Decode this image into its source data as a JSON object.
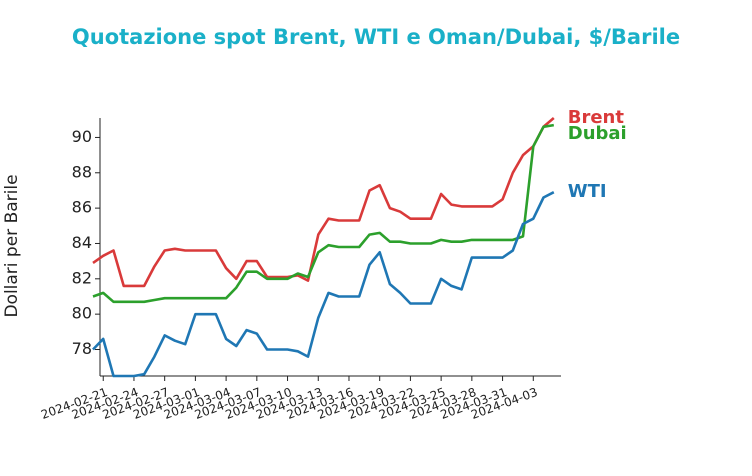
{
  "chart_data": {
    "type": "line",
    "title": "Quotazione spot Brent, WTI e Oman/Dubai, $/Barile",
    "y_label": "Dollari per Barile",
    "x": [
      "2024-02-20",
      "2024-02-21",
      "2024-02-22",
      "2024-02-23",
      "2024-02-24",
      "2024-02-25",
      "2024-02-26",
      "2024-02-27",
      "2024-02-28",
      "2024-02-29",
      "2024-03-01",
      "2024-03-02",
      "2024-03-03",
      "2024-03-04",
      "2024-03-05",
      "2024-03-06",
      "2024-03-07",
      "2024-03-08",
      "2024-03-09",
      "2024-03-10",
      "2024-03-11",
      "2024-03-12",
      "2024-03-13",
      "2024-03-14",
      "2024-03-15",
      "2024-03-16",
      "2024-03-17",
      "2024-03-18",
      "2024-03-19",
      "2024-03-20",
      "2024-03-21",
      "2024-03-22",
      "2024-03-23",
      "2024-03-24",
      "2024-03-25",
      "2024-03-26",
      "2024-03-27",
      "2024-03-28",
      "2024-03-29",
      "2024-03-30",
      "2024-03-31",
      "2024-04-01",
      "2024-04-02",
      "2024-04-03",
      "2024-04-04",
      "2024-04-05"
    ],
    "series": [
      {
        "name": "Brent",
        "color": "#d93a3a",
        "values": [
          82.9,
          83.3,
          83.6,
          81.6,
          81.6,
          81.6,
          82.7,
          83.6,
          83.7,
          83.6,
          83.6,
          83.6,
          83.6,
          82.6,
          82.0,
          83.0,
          83.0,
          82.1,
          82.1,
          82.1,
          82.2,
          81.9,
          84.5,
          85.4,
          85.3,
          85.3,
          85.3,
          87.0,
          87.3,
          86.0,
          85.8,
          85.4,
          85.4,
          85.4,
          86.8,
          86.2,
          86.1,
          86.1,
          86.1,
          86.1,
          86.5,
          88.0,
          89.0,
          89.5,
          90.6,
          91.1
        ]
      },
      {
        "name": "Dubai",
        "color": "#2ca02c",
        "values": [
          81.0,
          81.2,
          80.7,
          80.7,
          80.7,
          80.7,
          80.8,
          80.9,
          80.9,
          80.9,
          80.9,
          80.9,
          80.9,
          80.9,
          81.5,
          82.4,
          82.4,
          82.0,
          82.0,
          82.0,
          82.3,
          82.1,
          83.5,
          83.9,
          83.8,
          83.8,
          83.8,
          84.5,
          84.6,
          84.1,
          84.1,
          84.0,
          84.0,
          84.0,
          84.2,
          84.1,
          84.1,
          84.2,
          84.2,
          84.2,
          84.2,
          84.2,
          84.4,
          89.5,
          90.6,
          90.7
        ]
      },
      {
        "name": "WTI",
        "color": "#1f77b4",
        "values": [
          78.0,
          78.6,
          76.5,
          76.5,
          76.5,
          76.6,
          77.6,
          78.8,
          78.5,
          78.3,
          80.0,
          80.0,
          80.0,
          78.6,
          78.2,
          79.1,
          78.9,
          78.0,
          78.0,
          78.0,
          77.9,
          77.6,
          79.8,
          81.2,
          81.0,
          81.0,
          81.0,
          82.8,
          83.5,
          81.7,
          81.2,
          80.6,
          80.6,
          80.6,
          82.0,
          81.6,
          81.4,
          83.2,
          83.2,
          83.2,
          83.2,
          83.6,
          85.1,
          85.4,
          86.6,
          86.9
        ]
      }
    ],
    "xlim": [
      "2024-02-20",
      "2024-04-06"
    ],
    "xticks": [
      "2024-02-21",
      "2024-02-24",
      "2024-02-27",
      "2024-03-01",
      "2024-03-04",
      "2024-03-07",
      "2024-03-10",
      "2024-03-13",
      "2024-03-16",
      "2024-03-19",
      "2024-03-22",
      "2024-03-25",
      "2024-03-28",
      "2024-03-31",
      "2024-04-03"
    ],
    "ylim": [
      76.5,
      91.1
    ],
    "yticks": [
      78,
      80,
      82,
      84,
      86,
      88,
      90
    ]
  }
}
